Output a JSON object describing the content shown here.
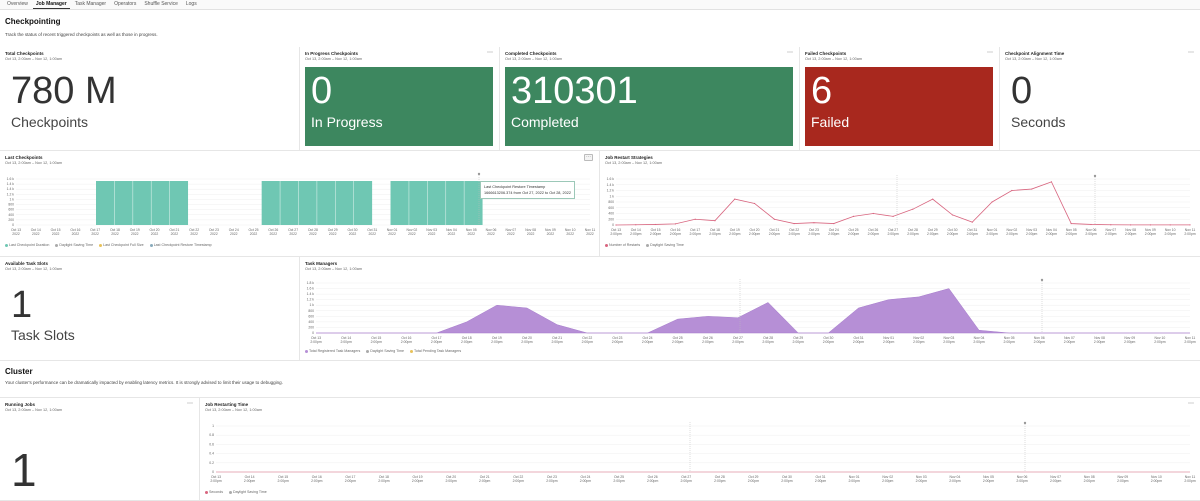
{
  "tabs": [
    {
      "label": "Overview"
    },
    {
      "label": "Job Manager",
      "active": true
    },
    {
      "label": "Task Manager"
    },
    {
      "label": "Operators"
    },
    {
      "label": "Shuffle Service"
    },
    {
      "label": "Logs"
    }
  ],
  "checkpointing": {
    "title": "Checkpointing",
    "subtitle": "Track the status of recent triggered checkpoints as well as those in progress."
  },
  "range": "Oct 13, 2:00am – Nov 12, 1:00am",
  "stats": [
    {
      "title": "Total Checkpoints",
      "value": "780 M",
      "label": "Checkpoints",
      "style": "plain"
    },
    {
      "title": "In Progress Checkpoints",
      "value": "0",
      "label": "In Progress",
      "style": "green"
    },
    {
      "title": "Completed Checkpoints",
      "value": "310301",
      "label": "Completed",
      "style": "green"
    },
    {
      "title": "Failed Checkpoints",
      "value": "6",
      "label": "Failed",
      "style": "red"
    },
    {
      "title": "Checkpoint Alignment Time",
      "value": "0",
      "label": "Seconds",
      "style": "plain"
    }
  ],
  "colors": {
    "green": "#3d875f",
    "red": "#a8281e",
    "teal": "#6fc7b3",
    "purple": "#b68fd6",
    "pink": "#d8657f"
  },
  "last_checkpoints": {
    "title": "Last Checkpoints",
    "tooltip_title": "Last Checkpoint Restore Timestamp",
    "tooltip_text": "1666613206.374 from Oct 27, 2022 to Oct 28, 2022",
    "legend": [
      "Last Checkpoint Duration",
      "Daylight Saving Time",
      "Last Checkpoint Full Size",
      "Last Checkpoint Restore Timestamp"
    ],
    "y_ticks": [
      "1.6 k",
      "1.4 k",
      "1.4 k",
      "1.2 k",
      "1 k",
      "800",
      "600",
      "400",
      "200",
      "0"
    ]
  },
  "job_restart": {
    "title": "Job Restart Strategies",
    "legend": [
      "Number of Restarts",
      "Daylight Saving Time"
    ],
    "y_ticks": [
      "1.6 k",
      "1.4 k",
      "1.2 k",
      "1 k",
      "800",
      "600",
      "400",
      "200",
      "0"
    ]
  },
  "available_slots": {
    "title": "Available Task Slots",
    "value": "1",
    "label": "Task Slots"
  },
  "task_managers": {
    "title": "Task Managers",
    "legend": [
      "Total Registered Task Managers",
      "Daylight Saving Time",
      "Total Pending Task Managers"
    ],
    "y_ticks": [
      "1.8 k",
      "1.6 k",
      "1.4 k",
      "1.2 k",
      "1 k",
      "800",
      "600",
      "400",
      "200",
      "0"
    ]
  },
  "cluster": {
    "title": "Cluster",
    "subtitle": "Your cluster's performance can be dramatically impacted by enabling latency metrics. It is strongly advised to limit their usage to debugging."
  },
  "running_jobs": {
    "title": "Running Jobs",
    "value": "1"
  },
  "restarting_time": {
    "title": "Job Restarting Time",
    "legend": [
      "Seconds",
      "Daylight Saving Time"
    ],
    "y_ticks": [
      "1",
      "0.8",
      "0.6",
      "0.4",
      "0.2",
      "0"
    ]
  },
  "x_dates": [
    "Oct 13",
    "Oct 14",
    "Oct 15",
    "Oct 16",
    "Oct 17",
    "Oct 18",
    "Oct 19",
    "Oct 20",
    "Oct 21",
    "Oct 22",
    "Oct 23",
    "Oct 24",
    "Oct 25",
    "Oct 26",
    "Oct 27",
    "Oct 28",
    "Oct 29",
    "Oct 30",
    "Oct 31",
    "Nov 01",
    "Nov 02",
    "Nov 03",
    "Nov 04",
    "Nov 05",
    "Nov 06",
    "Nov 07",
    "Nov 08",
    "Nov 09",
    "Nov 10",
    "Nov 11"
  ],
  "x_year": "2022",
  "x_time": "2:00pm",
  "chart_data": [
    {
      "type": "bar",
      "title": "Last Checkpoints",
      "segments": [
        [
          17,
          22
        ],
        [
          26,
          32
        ],
        [
          33,
          38
        ]
      ]
    },
    {
      "type": "line",
      "title": "Job Restart Strategies",
      "ylim": [
        0,
        1600
      ],
      "series": [
        {
          "name": "Number of Restarts",
          "values": [
            0,
            10,
            20,
            40,
            200,
            150,
            900,
            750,
            200,
            50,
            80,
            50,
            300,
            400,
            300,
            550,
            900,
            350,
            100,
            800,
            1200,
            1250,
            1500,
            50,
            20,
            10,
            5,
            5,
            5,
            5
          ]
        }
      ]
    },
    {
      "type": "area",
      "title": "Task Managers",
      "ylim": [
        0,
        1800
      ],
      "series": [
        {
          "name": "Total Registered Task Managers",
          "values": [
            0,
            0,
            0,
            0,
            0,
            400,
            1000,
            900,
            300,
            0,
            0,
            0,
            500,
            600,
            550,
            1100,
            0,
            0,
            900,
            1200,
            1300,
            1600,
            100,
            0,
            0,
            0,
            0,
            0,
            0,
            0
          ]
        }
      ]
    },
    {
      "type": "line",
      "title": "Job Restarting Time",
      "ylim": [
        0,
        1
      ],
      "series": [
        {
          "name": "Seconds",
          "values": [
            0,
            0,
            0,
            0,
            0,
            0,
            0,
            0,
            0,
            0,
            0,
            0,
            0,
            0,
            0,
            0,
            0,
            0,
            0,
            0,
            0,
            0,
            0,
            0,
            0,
            0,
            0,
            0,
            0,
            0
          ]
        }
      ]
    }
  ]
}
